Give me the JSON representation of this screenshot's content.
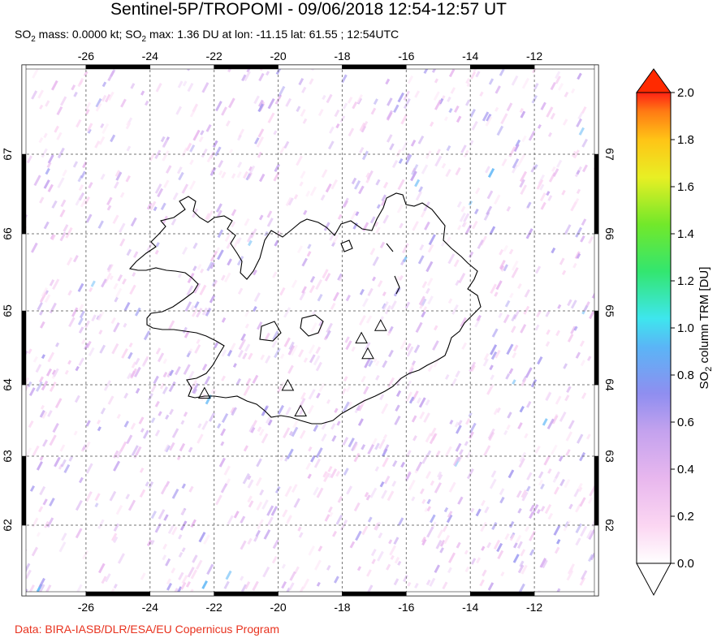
{
  "title": "Sentinel-5P/TROPOMI - 09/06/2018 12:54-12:57 UT",
  "subtitle": {
    "part1": "SO",
    "sub1": "2",
    "part2": " mass: 0.0000 kt; SO",
    "sub2": "2",
    "part3": " max: 1.36 DU at lon: -11.15 lat: 61.55 ; 12:54UTC"
  },
  "credit": "Data: BIRA-IASB/DLR/ESA/EU Copernicus Program",
  "map": {
    "lon_range": [
      -28,
      -10
    ],
    "lat_range": [
      61,
      68
    ],
    "lon_ticks": [
      "-26",
      "-24",
      "-22",
      "-20",
      "-18",
      "-16",
      "-14",
      "-12"
    ],
    "lat_ticks": [
      "67",
      "66",
      "65",
      "64",
      "63",
      "62"
    ],
    "volcano_markers": [
      {
        "lon": -22.3,
        "lat": 63.88
      },
      {
        "lon": -19.7,
        "lat": 63.99
      },
      {
        "lon": -19.3,
        "lat": 63.63
      },
      {
        "lon": -17.4,
        "lat": 64.63
      },
      {
        "lon": -17.2,
        "lat": 64.42
      },
      {
        "lon": -16.8,
        "lat": 64.8
      }
    ]
  },
  "colorbar": {
    "label_main": "SO",
    "label_sub": "2",
    "label_rest": " column TRM [DU]",
    "ticks": [
      "2.0",
      "1.8",
      "1.6",
      "1.4",
      "1.2",
      "1.0",
      "0.8",
      "0.6",
      "0.4",
      "0.2",
      "0.0"
    ],
    "colors": [
      "#ffffff",
      "#fbd6f2",
      "#e8b7ee",
      "#c4a2ee",
      "#8f8ef0",
      "#5ab5f6",
      "#3ee6ee",
      "#33e66f",
      "#72e82a",
      "#e8ef24",
      "#ffc416",
      "#ff7a14",
      "#ff2214"
    ],
    "max_arrow_color": "#ff2a00",
    "min_arrow_color": "#ffffff"
  }
}
